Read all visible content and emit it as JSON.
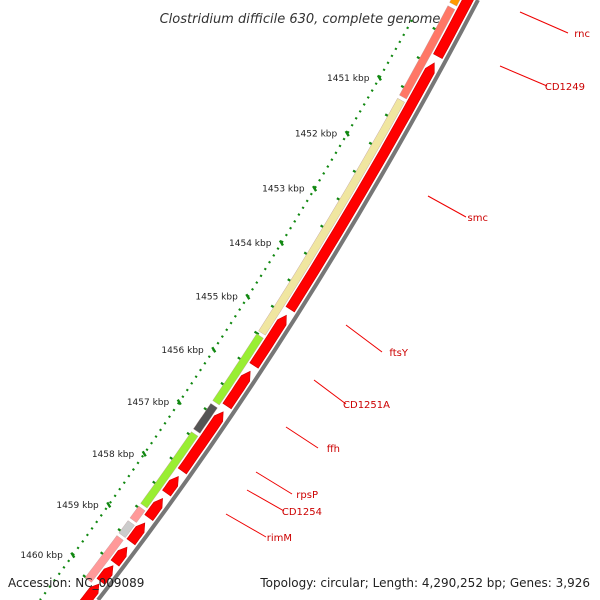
{
  "map": {
    "title": "Clostridium difficile 630, complete genome",
    "accession_label": "Accession: NC_009089",
    "topology_label": "Topology: circular; Length: 4,290,252 bp; Genes: 3,926",
    "backbone_color": "#777777",
    "tick_color": "#118811"
  },
  "chart_data": {
    "type": "genome-map",
    "ticks": [
      {
        "label": "1451 kbp",
        "kbp": 1451
      },
      {
        "label": "1452 kbp",
        "kbp": 1452
      },
      {
        "label": "1453 kbp",
        "kbp": 1453
      },
      {
        "label": "1454 kbp",
        "kbp": 1454
      },
      {
        "label": "1455 kbp",
        "kbp": 1455
      },
      {
        "label": "1456 kbp",
        "kbp": 1456
      },
      {
        "label": "1457 kbp",
        "kbp": 1457
      },
      {
        "label": "1458 kbp",
        "kbp": 1458
      },
      {
        "label": "1459 kbp",
        "kbp": 1459
      },
      {
        "label": "1460 kbp",
        "kbp": 1460
      }
    ],
    "outer_features_color": "#ff0000",
    "inner_features": [
      {
        "label": "rnc",
        "color": "#ff9900"
      },
      {
        "label": "CD1249",
        "color": "#ff7766"
      },
      {
        "label": "smc",
        "color": "#f0e6a0"
      },
      {
        "label": "ftsY",
        "color": "#99ee33"
      },
      {
        "label": "CD1251A",
        "color": "#555555"
      },
      {
        "label": "ffh",
        "color": "#99ee33"
      },
      {
        "label": "rpsP",
        "color": "#ff9999"
      },
      {
        "label": "CD1254",
        "color": "#cccccc"
      },
      {
        "label": "rimM",
        "color": "#ff9999"
      }
    ]
  }
}
